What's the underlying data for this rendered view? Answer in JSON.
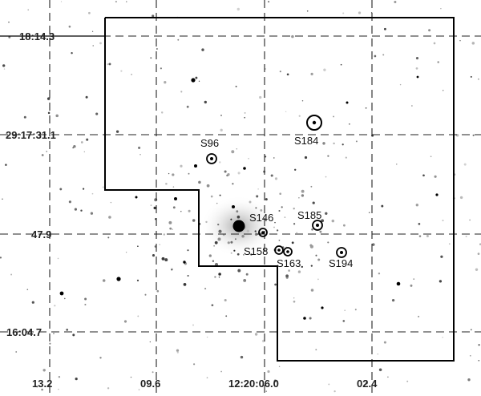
{
  "image": {
    "kind": "astronomical finding chart (inverted greyscale star field)",
    "dec_labels": [
      "18:14.3",
      "29:17:31.1",
      "47.9",
      "16:04.7"
    ],
    "ra_labels": [
      "13.2",
      "09.6",
      "12:20:06.0",
      "02.4"
    ],
    "sources": [
      {
        "id": "S184",
        "label": "S184"
      },
      {
        "id": "S96",
        "label": "S96"
      },
      {
        "id": "S146",
        "label": "S146"
      },
      {
        "id": "S185",
        "label": "S185"
      },
      {
        "id": "S158",
        "label": "S158"
      },
      {
        "id": "S163",
        "label": "S163"
      },
      {
        "id": "S194",
        "label": "S194"
      }
    ]
  }
}
